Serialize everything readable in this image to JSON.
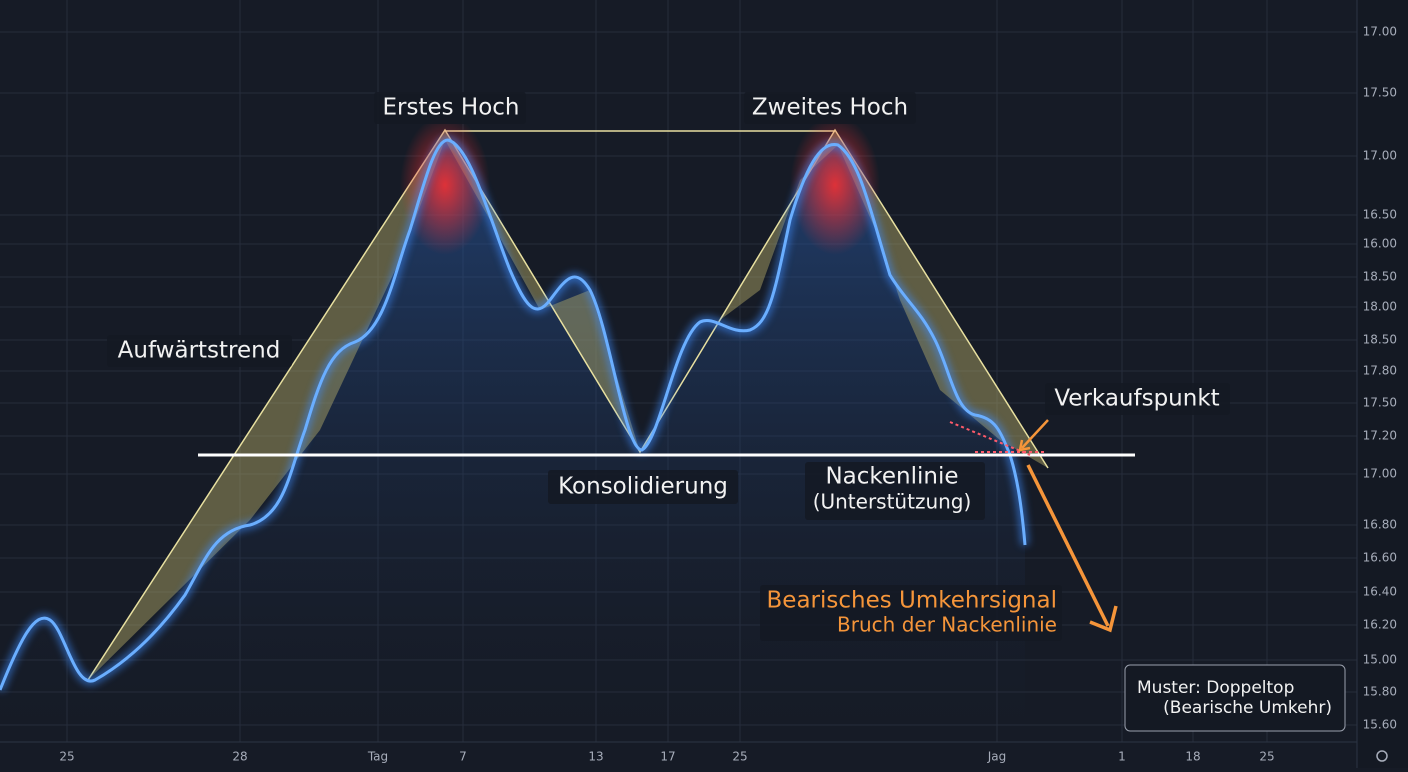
{
  "y_axis_labels": [
    "17.00",
    "17.50",
    "17.00",
    "16.50",
    "16.00",
    "18.50",
    "18.00",
    "18.50",
    "17.80",
    "17.50",
    "17.20",
    "17.00",
    "16.80",
    "16.60",
    "16.40",
    "16.20",
    "15.00",
    "15.80",
    "15.60"
  ],
  "x_axis_labels": [
    "25",
    "28",
    "Tag",
    "7",
    "13",
    "17",
    "25",
    "Jag",
    "1",
    "18",
    "25"
  ],
  "annotations": {
    "first_peak": "Erstes Hoch",
    "second_peak": "Zweites Hoch",
    "uptrend": "Aufwärtstrend",
    "consolidation": "Konsolidierung",
    "neckline": "Nackenlinie",
    "neckline_sub": "(Unterstützung)",
    "sell_point": "Verkaufspunkt",
    "signal": "Bearisches Umkehrsignal",
    "signal_sub": "Bruch der Nackenlinie"
  },
  "info_box": {
    "line1": "Muster: Doppeltop",
    "line2": "(Bearische Umkehr)"
  }
}
